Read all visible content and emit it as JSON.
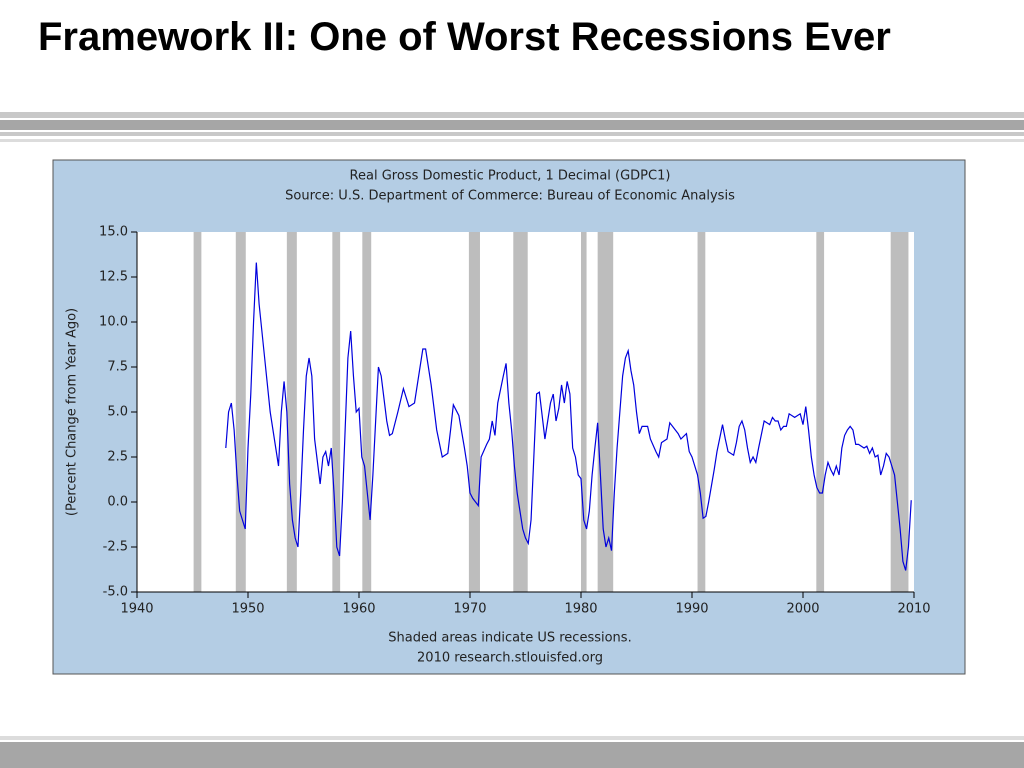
{
  "slide_title": "Framework II: One of Worst Recessions Ever",
  "chart_data": {
    "type": "line",
    "title": "Real Gross Domestic Product, 1 Decimal (GDPC1)",
    "subtitle": "Source: U.S. Department of Commerce: Bureau of Economic Analysis",
    "ylabel": "(Percent Change from Year Ago)",
    "annotations": [
      "Shaded areas indicate US recessions.",
      "2010 research.stlouisfed.org"
    ],
    "color": "#0000dd",
    "xlim": [
      1940,
      2010
    ],
    "xticks": [
      1940,
      1950,
      1960,
      1970,
      1980,
      1990,
      2000,
      2010
    ],
    "ylim": [
      -5,
      15
    ],
    "yticks": [
      {
        "value": -5,
        "label": "-5.0"
      },
      {
        "value": -2.5,
        "label": "-2.5"
      },
      {
        "value": 0,
        "label": "0.0"
      },
      {
        "value": 2.5,
        "label": "2.5"
      },
      {
        "value": 5,
        "label": "5.0"
      },
      {
        "value": 7.5,
        "label": "7.5"
      },
      {
        "value": 10,
        "label": "10.0"
      },
      {
        "value": 12.5,
        "label": "12.5"
      },
      {
        "value": 15,
        "label": "15.0"
      }
    ],
    "recessions": [
      [
        1945.1,
        1945.8
      ],
      [
        1948.9,
        1949.8
      ],
      [
        1953.5,
        1954.4
      ],
      [
        1957.6,
        1958.3
      ],
      [
        1960.3,
        1961.1
      ],
      [
        1969.9,
        1970.9
      ],
      [
        1973.9,
        1975.2
      ],
      [
        1980.0,
        1980.5
      ],
      [
        1981.5,
        1982.9
      ],
      [
        1990.5,
        1991.2
      ],
      [
        2001.2,
        2001.9
      ],
      [
        2007.9,
        2009.5
      ]
    ],
    "x": [
      1948.0,
      1948.25,
      1948.5,
      1948.75,
      1949.0,
      1949.25,
      1949.5,
      1949.75,
      1950.0,
      1950.25,
      1950.5,
      1950.75,
      1951.0,
      1951.5,
      1952.0,
      1952.5,
      1952.75,
      1953.0,
      1953.25,
      1953.5,
      1953.75,
      1954.0,
      1954.25,
      1954.5,
      1954.75,
      1955.0,
      1955.25,
      1955.5,
      1955.75,
      1956.0,
      1956.5,
      1956.75,
      1957.0,
      1957.25,
      1957.5,
      1957.75,
      1958.0,
      1958.25,
      1958.5,
      1958.75,
      1959.0,
      1959.25,
      1959.5,
      1959.75,
      1960.0,
      1960.25,
      1960.5,
      1960.75,
      1961.0,
      1961.25,
      1961.5,
      1961.75,
      1962.0,
      1962.5,
      1962.75,
      1963.0,
      1963.5,
      1964.0,
      1964.5,
      1965.0,
      1965.25,
      1965.75,
      1966.0,
      1966.5,
      1967.0,
      1967.5,
      1968.0,
      1968.25,
      1968.5,
      1969.0,
      1969.5,
      1969.75,
      1970.0,
      1970.25,
      1970.5,
      1970.75,
      1971.0,
      1971.5,
      1971.75,
      1972.0,
      1972.25,
      1972.5,
      1973.0,
      1973.25,
      1973.5,
      1973.75,
      1974.0,
      1974.25,
      1974.5,
      1974.75,
      1975.0,
      1975.25,
      1975.5,
      1975.75,
      1976.0,
      1976.25,
      1976.5,
      1976.75,
      1977.0,
      1977.25,
      1977.5,
      1977.75,
      1978.0,
      1978.25,
      1978.5,
      1978.75,
      1979.0,
      1979.25,
      1979.5,
      1979.75,
      1980.0,
      1980.25,
      1980.5,
      1980.75,
      1981.0,
      1981.25,
      1981.5,
      1981.75,
      1982.0,
      1982.25,
      1982.5,
      1982.75,
      1983.0,
      1983.25,
      1983.5,
      1983.75,
      1984.0,
      1984.25,
      1984.5,
      1984.75,
      1985.0,
      1985.25,
      1985.5,
      1986.0,
      1986.25,
      1986.75,
      1987.0,
      1987.25,
      1987.75,
      1988.0,
      1988.5,
      1988.75,
      1989.0,
      1989.5,
      1989.75,
      1990.0,
      1990.5,
      1990.75,
      1991.0,
      1991.25,
      1991.5,
      1992.0,
      1992.25,
      1992.75,
      1993.0,
      1993.25,
      1993.75,
      1994.0,
      1994.25,
      1994.5,
      1994.75,
      1995.0,
      1995.25,
      1995.5,
      1995.75,
      1996.0,
      1996.5,
      1997.0,
      1997.25,
      1997.5,
      1997.75,
      1998.0,
      1998.25,
      1998.5,
      1998.75,
      1999.25,
      1999.75,
      2000.0,
      2000.25,
      2000.5,
      2000.75,
      2001.0,
      2001.25,
      2001.5,
      2001.75,
      2002.0,
      2002.25,
      2002.5,
      2002.75,
      2003.0,
      2003.25,
      2003.5,
      2003.75,
      2004.0,
      2004.25,
      2004.5,
      2004.75,
      2005.0,
      2005.5,
      2005.75,
      2006.0,
      2006.25,
      2006.5,
      2006.75,
      2007.0,
      2007.25,
      2007.5,
      2007.75,
      2008.0,
      2008.25,
      2008.5,
      2008.75,
      2009.0,
      2009.25,
      2009.5,
      2009.75
    ],
    "values": [
      3.0,
      5.0,
      5.5,
      4.0,
      1.5,
      -0.5,
      -1.0,
      -1.5,
      3.0,
      6.0,
      10.0,
      13.3,
      11.0,
      8.0,
      5.0,
      3.0,
      2.0,
      5.0,
      6.7,
      5.0,
      1.0,
      -1.0,
      -2.0,
      -2.5,
      0.5,
      4.0,
      7.0,
      8.0,
      7.0,
      3.5,
      1.0,
      2.5,
      2.8,
      2.0,
      3.0,
      0.5,
      -2.5,
      -3.0,
      0.0,
      4.0,
      8.0,
      9.5,
      7.0,
      5.0,
      5.2,
      2.5,
      2.0,
      0.5,
      -1.0,
      1.5,
      4.5,
      7.5,
      7.0,
      4.5,
      3.7,
      3.8,
      5.0,
      6.3,
      5.3,
      5.5,
      6.5,
      8.5,
      8.5,
      6.5,
      4.0,
      2.5,
      2.7,
      4.0,
      5.4,
      4.8,
      3.0,
      2.0,
      0.5,
      0.2,
      0.0,
      -0.2,
      2.5,
      3.2,
      3.5,
      4.5,
      3.7,
      5.5,
      7.0,
      7.7,
      5.5,
      4.0,
      2.0,
      0.5,
      -0.5,
      -1.5,
      -2.0,
      -2.3,
      -1.0,
      2.5,
      6.0,
      6.1,
      4.8,
      3.5,
      4.5,
      5.5,
      6.0,
      4.5,
      5.2,
      6.5,
      5.5,
      6.7,
      6.0,
      3.0,
      2.5,
      1.5,
      1.3,
      -1.0,
      -1.5,
      -0.5,
      1.5,
      3.0,
      4.4,
      1.5,
      -1.5,
      -2.5,
      -2.0,
      -2.7,
      0.5,
      3.0,
      5.0,
      7.0,
      8.0,
      8.4,
      7.3,
      6.5,
      5.0,
      3.8,
      4.2,
      4.2,
      3.5,
      2.8,
      2.5,
      3.3,
      3.5,
      4.4,
      4.0,
      3.8,
      3.5,
      3.8,
      2.8,
      2.5,
      1.5,
      0.5,
      -0.9,
      -0.8,
      0.0,
      1.8,
      2.8,
      4.3,
      3.5,
      2.8,
      2.6,
      3.3,
      4.2,
      4.5,
      4.0,
      3.0,
      2.2,
      2.5,
      2.2,
      3.0,
      4.5,
      4.3,
      4.7,
      4.5,
      4.5,
      4.0,
      4.2,
      4.2,
      4.9,
      4.7,
      4.9,
      4.3,
      5.3,
      4.0,
      2.5,
      1.5,
      0.8,
      0.5,
      0.5,
      1.5,
      2.2,
      1.8,
      1.5,
      2.0,
      1.5,
      3.0,
      3.7,
      4.0,
      4.2,
      4.0,
      3.2,
      3.2,
      3.0,
      3.1,
      2.7,
      3.0,
      2.5,
      2.6,
      1.5,
      2.0,
      2.7,
      2.5,
      2.0,
      1.5,
      0.0,
      -1.5,
      -3.3,
      -3.8,
      -2.5,
      0.1
    ]
  }
}
